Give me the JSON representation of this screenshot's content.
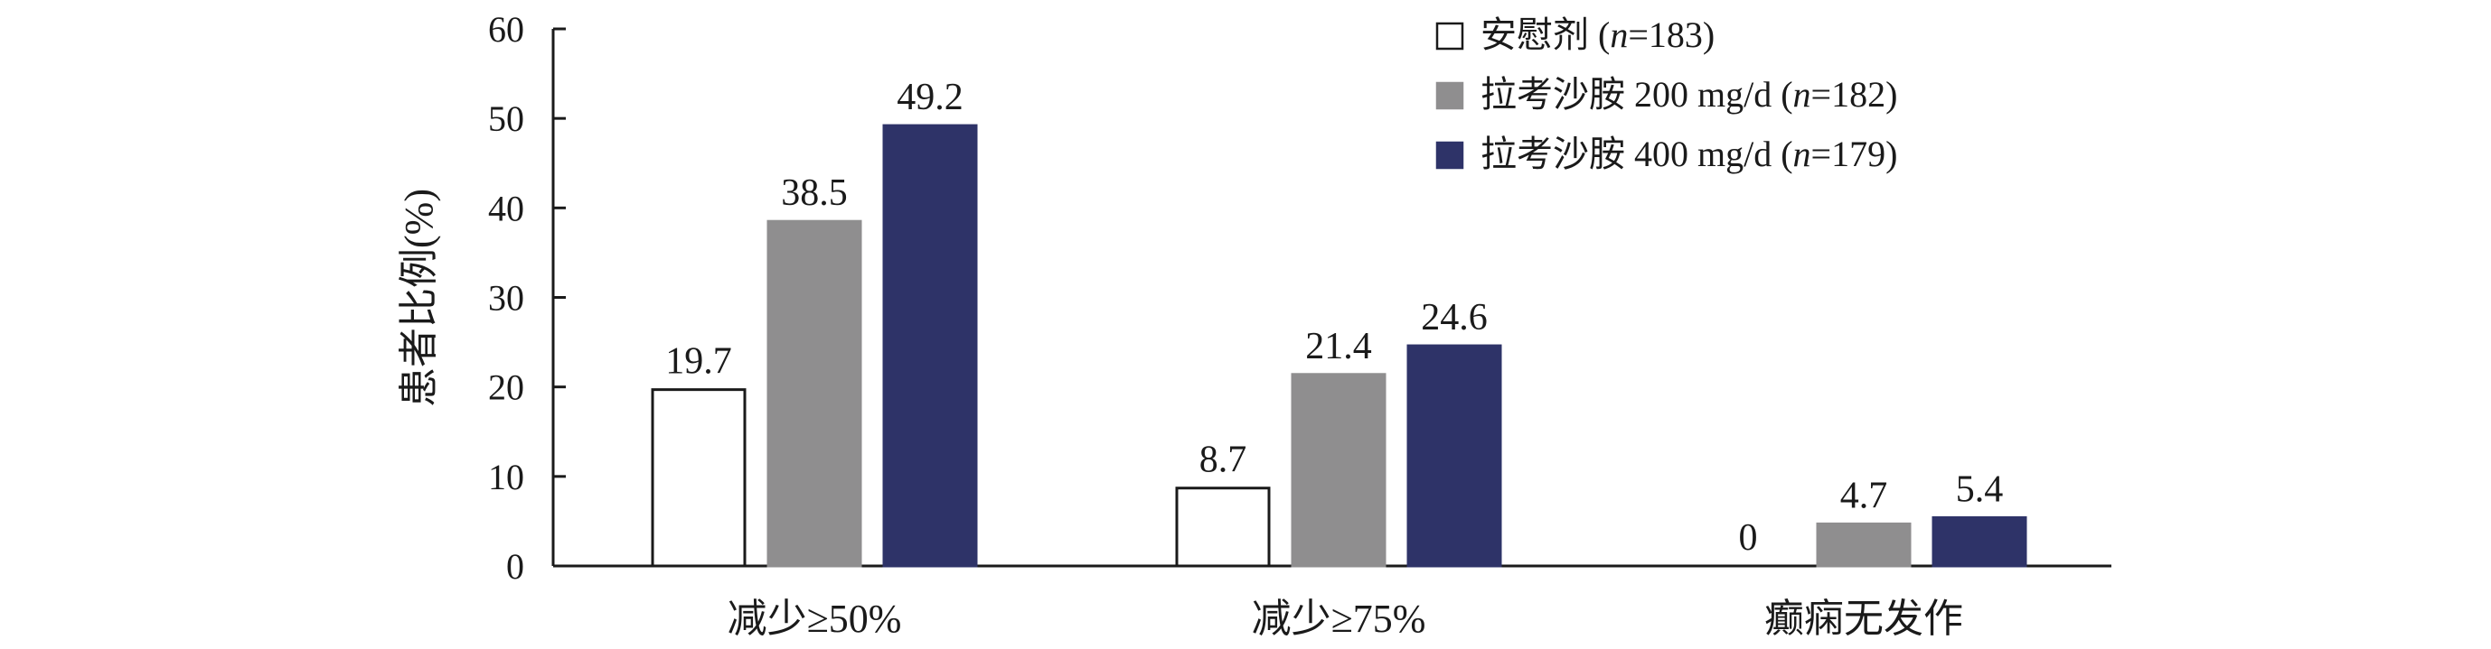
{
  "chart_data": {
    "type": "bar",
    "title": "",
    "xlabel": "",
    "ylabel": "患者比例(%)",
    "ylim": [
      0,
      60
    ],
    "yticks": [
      0,
      10,
      20,
      30,
      40,
      50,
      60
    ],
    "grid": false,
    "legend_position": "top-right",
    "categories": [
      "减少≥50%",
      "减少≥75%",
      "癫痫无发作"
    ],
    "series": [
      {
        "name": "安慰剂 (n=183)",
        "name_prefix": "安慰剂 (",
        "name_italic": "n",
        "name_suffix": "=183)",
        "fill": "#ffffff",
        "stroke": "#1a1a1a",
        "values": [
          19.7,
          8.7,
          0
        ]
      },
      {
        "name": "拉考沙胺 200 mg/d (n=182)",
        "name_prefix": "拉考沙胺 200 mg/d (",
        "name_italic": "n",
        "name_suffix": "=182)",
        "fill": "#8f8e8f",
        "stroke": "#8f8e8f",
        "values": [
          38.5,
          21.4,
          4.7
        ]
      },
      {
        "name": "拉考沙胺 400 mg/d (n=179)",
        "name_prefix": "拉考沙胺 400 mg/d (",
        "name_italic": "n",
        "name_suffix": "=179)",
        "fill": "#2e3368",
        "stroke": "#2e3368",
        "values": [
          49.2,
          24.6,
          5.4
        ]
      }
    ],
    "value_labels": [
      [
        "19.7",
        "8.7",
        "0"
      ],
      [
        "38.5",
        "21.4",
        "4.7"
      ],
      [
        "49.2",
        "24.6",
        "5.4"
      ]
    ]
  }
}
